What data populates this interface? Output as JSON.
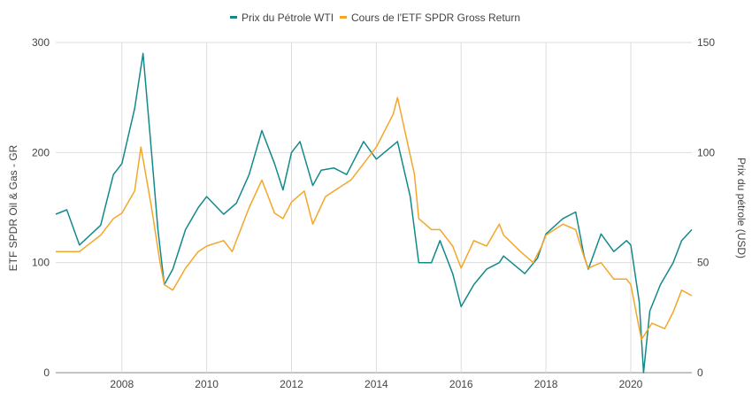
{
  "chart_data": {
    "type": "line",
    "title": "",
    "legend_position": "top",
    "grid": true,
    "x_axis": {
      "ticks": [
        "2008",
        "2010",
        "2012",
        "2014",
        "2016",
        "2018",
        "2020"
      ],
      "range": [
        2006.44,
        2021.44
      ]
    },
    "y_left": {
      "label": "ETF SPDR Oil & Gas - GR",
      "range": [
        0,
        300
      ],
      "ticks": [
        "0",
        "100",
        "200",
        "300"
      ]
    },
    "y_right": {
      "label": "Prix du pétrole (USD)",
      "range": [
        0,
        150
      ],
      "ticks": [
        "0",
        "50",
        "100",
        "150"
      ]
    },
    "series": [
      {
        "name": "Prix du Pétrole WTI",
        "axis": "right",
        "color": "#14898a",
        "x": [
          2006.44,
          2006.7,
          2007.0,
          2007.5,
          2007.8,
          2008.0,
          2008.3,
          2008.5,
          2008.7,
          2008.85,
          2009.0,
          2009.2,
          2009.5,
          2009.8,
          2010.0,
          2010.4,
          2010.7,
          2011.0,
          2011.3,
          2011.6,
          2011.8,
          2012.0,
          2012.2,
          2012.5,
          2012.7,
          2013.0,
          2013.3,
          2013.7,
          2014.0,
          2014.5,
          2014.8,
          2015.0,
          2015.3,
          2015.5,
          2015.8,
          2016.0,
          2016.3,
          2016.6,
          2016.9,
          2017.0,
          2017.5,
          2017.8,
          2018.0,
          2018.4,
          2018.7,
          2018.9,
          2019.0,
          2019.3,
          2019.6,
          2019.9,
          2020.0,
          2020.2,
          2020.3,
          2020.45,
          2020.7,
          2021.0,
          2021.2,
          2021.44
        ],
        "y": [
          72,
          74,
          58,
          67,
          90,
          95,
          120,
          145,
          100,
          65,
          40,
          47,
          65,
          75,
          80,
          72,
          77,
          90,
          110,
          95,
          83,
          100,
          105,
          85,
          92,
          93,
          90,
          105,
          97,
          105,
          80,
          50,
          50,
          60,
          45,
          30,
          40,
          47,
          50,
          53,
          45,
          52,
          63,
          70,
          73,
          53,
          47,
          63,
          55,
          60,
          58,
          32,
          0,
          28,
          40,
          50,
          60,
          65
        ]
      },
      {
        "name": "Cours de l'ETF SPDR Gross Return",
        "axis": "left",
        "color": "#f4a629",
        "x": [
          2006.44,
          2007.0,
          2007.5,
          2007.8,
          2008.0,
          2008.3,
          2008.45,
          2008.7,
          2008.9,
          2009.0,
          2009.2,
          2009.5,
          2009.8,
          2010.0,
          2010.4,
          2010.6,
          2011.0,
          2011.3,
          2011.6,
          2011.8,
          2012.0,
          2012.3,
          2012.5,
          2012.8,
          2013.0,
          2013.4,
          2013.7,
          2014.0,
          2014.4,
          2014.5,
          2014.7,
          2014.9,
          2015.0,
          2015.3,
          2015.5,
          2015.8,
          2016.0,
          2016.3,
          2016.6,
          2016.9,
          2017.0,
          2017.4,
          2017.7,
          2017.9,
          2018.0,
          2018.4,
          2018.7,
          2018.9,
          2019.0,
          2019.3,
          2019.6,
          2019.9,
          2020.0,
          2020.2,
          2020.25,
          2020.5,
          2020.8,
          2021.0,
          2021.2,
          2021.44
        ],
        "y": [
          110,
          110,
          125,
          140,
          145,
          165,
          205,
          150,
          100,
          80,
          75,
          95,
          110,
          115,
          120,
          110,
          150,
          175,
          145,
          140,
          155,
          165,
          135,
          160,
          165,
          175,
          190,
          205,
          235,
          250,
          215,
          180,
          140,
          130,
          130,
          115,
          95,
          120,
          115,
          135,
          125,
          110,
          100,
          115,
          125,
          135,
          130,
          105,
          95,
          100,
          85,
          85,
          80,
          40,
          30,
          45,
          40,
          55,
          75,
          70
        ]
      }
    ]
  }
}
